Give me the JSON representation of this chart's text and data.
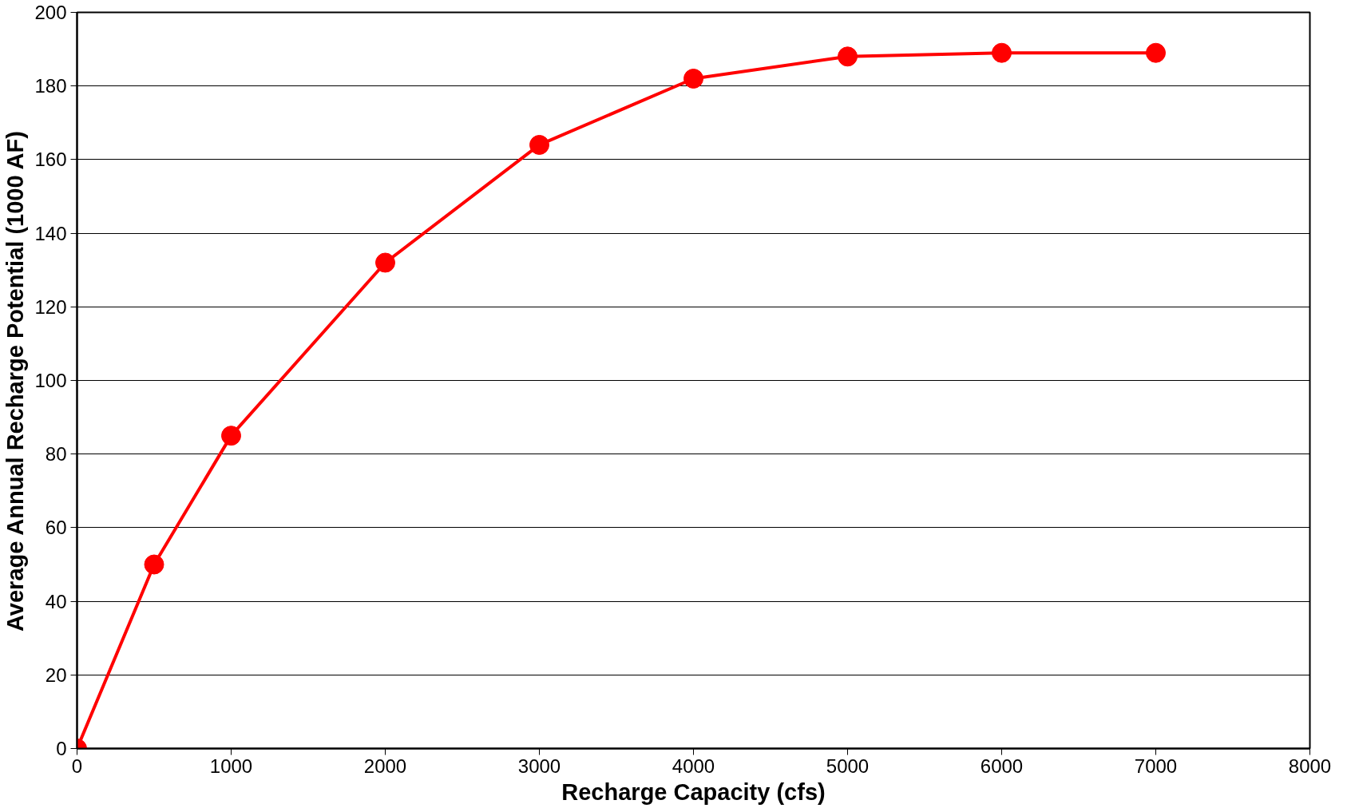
{
  "chart_data": {
    "type": "line",
    "xlabel": "Recharge Capacity (cfs)",
    "ylabel": "Average Annual Recharge Potential (1000 AF)",
    "x": [
      0,
      500,
      1000,
      2000,
      3000,
      4000,
      5000,
      6000,
      7000
    ],
    "series": [
      {
        "color": "#ff0000",
        "values": [
          0,
          50,
          85,
          132,
          164,
          182,
          188,
          189,
          189
        ]
      }
    ],
    "xlim": [
      0,
      8000
    ],
    "xticks": [
      0,
      1000,
      2000,
      3000,
      4000,
      5000,
      6000,
      7000,
      8000
    ],
    "ylim": [
      0,
      200
    ],
    "yticks": [
      0,
      20,
      40,
      60,
      80,
      100,
      120,
      140,
      160,
      180,
      200
    ],
    "grid": "y",
    "marker": "circle",
    "line_style": "solid"
  }
}
